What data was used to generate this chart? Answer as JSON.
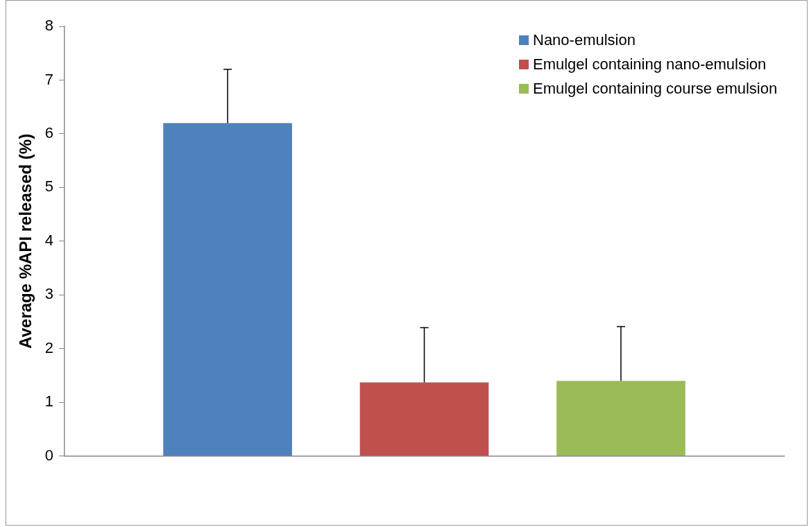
{
  "chart_data": {
    "type": "bar",
    "ylabel": "Average %API released (%)",
    "categories": [
      null
    ],
    "series": [
      {
        "name": "Nano-emulsion",
        "color": "#4f81bd",
        "values": [
          6.2
        ],
        "errors": [
          [
            6.2,
            7.2
          ]
        ]
      },
      {
        "name": "Emulgel containing nano-emulsion",
        "color": "#c0504d",
        "values": [
          1.37
        ],
        "errors": [
          [
            1.37,
            2.39
          ]
        ]
      },
      {
        "name": "Emulgel containing course emulsion",
        "color": "#9bbb59",
        "values": [
          1.4
        ],
        "errors": [
          [
            1.4,
            2.41
          ]
        ]
      }
    ],
    "ylim": [
      0,
      8
    ],
    "yticks": [
      0,
      1,
      2,
      3,
      4,
      5,
      6,
      7,
      8
    ],
    "legend": "top right"
  }
}
